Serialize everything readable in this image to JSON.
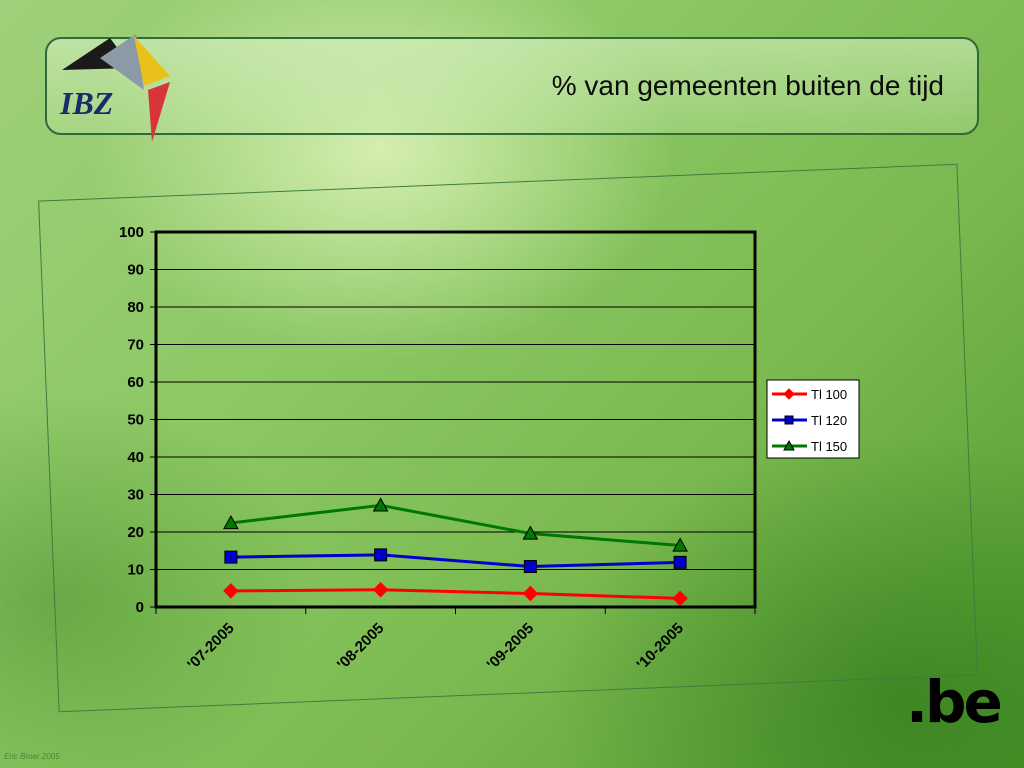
{
  "header": {
    "title": "% van gemeenten buiten de tijd",
    "logo_text": "IBZ"
  },
  "footer": {
    "brand": ".be",
    "credit": "Eric Broer 2005"
  },
  "colors": {
    "tl100": "#ff0000",
    "tl120": "#0000cc",
    "tl150": "#007700"
  },
  "chart_data": {
    "type": "line",
    "title": "",
    "xlabel": "",
    "ylabel": "",
    "categories": [
      "'07-2005",
      "'08-2005",
      "'09-2005",
      "'10-2005"
    ],
    "ylim": [
      0,
      100
    ],
    "yticks": [
      0,
      10,
      20,
      30,
      40,
      50,
      60,
      70,
      80,
      90,
      100
    ],
    "grid": true,
    "legend": "right",
    "series": [
      {
        "name": "Tl 100",
        "marker": "diamond",
        "color": "#ff0000",
        "values": [
          4.3,
          4.6,
          3.6,
          2.3
        ]
      },
      {
        "name": "Tl 120",
        "marker": "square",
        "color": "#0000cc",
        "values": [
          13.3,
          13.9,
          10.8,
          11.9
        ]
      },
      {
        "name": "Tl 150",
        "marker": "triangle",
        "color": "#007700",
        "values": [
          22.4,
          27.1,
          19.6,
          16.4
        ]
      }
    ]
  }
}
